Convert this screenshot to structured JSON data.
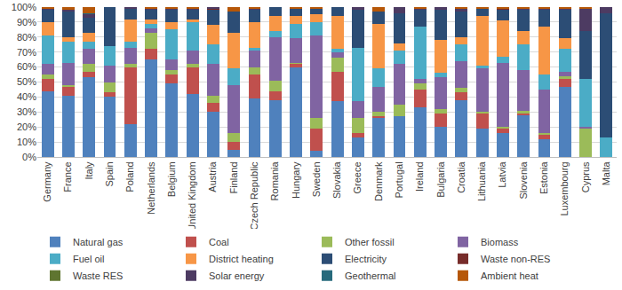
{
  "chart_data": {
    "type": "bar",
    "stacked": true,
    "grid": true,
    "legend": "bottom",
    "categories": [
      "Germany",
      "France",
      "Italy",
      "Spain",
      "Poland",
      "Netherlands",
      "Belgium",
      "United Kingdom",
      "Austria",
      "Finland",
      "Czech Republic",
      "Romania",
      "Hungary",
      "Sweden",
      "Slovakia",
      "Greece",
      "Denmark",
      "Portugal",
      "Ireland",
      "Bulgaria",
      "Croatia",
      "Lithuania",
      "Latvia",
      "Slovenia",
      "Estonia",
      "Luxembourg",
      "Cyprus",
      "Malta"
    ],
    "ylim": [
      0,
      100
    ],
    "yticks": [
      {
        "value": 0,
        "label": "0%"
      },
      {
        "value": 10,
        "label": "10%"
      },
      {
        "value": 20,
        "label": "20%"
      },
      {
        "value": 30,
        "label": "30%"
      },
      {
        "value": 40,
        "label": "40%"
      },
      {
        "value": 50,
        "label": "50%"
      },
      {
        "value": 60,
        "label": "60%"
      },
      {
        "value": 70,
        "label": "70%"
      },
      {
        "value": 80,
        "label": "80%"
      },
      {
        "value": 90,
        "label": "90%"
      },
      {
        "value": 100,
        "label": "100%"
      }
    ],
    "series": [
      {
        "name": "Natural gas",
        "color": "#4f81bd",
        "values": [
          44,
          41,
          53,
          40,
          22,
          65,
          49,
          42,
          30,
          5,
          39,
          38,
          60,
          4,
          37,
          13,
          26,
          27,
          33,
          20,
          38,
          19,
          16,
          28,
          12,
          47,
          0,
          0
        ]
      },
      {
        "name": "Coal",
        "color": "#c0504d",
        "values": [
          8,
          6,
          4,
          3,
          38,
          7,
          6,
          18,
          6,
          5,
          16,
          6,
          2,
          15,
          20,
          3,
          1,
          0,
          12,
          9,
          5,
          10,
          3,
          1,
          3,
          5,
          0,
          0
        ]
      },
      {
        "name": "Other fossil",
        "color": "#9bbb59",
        "values": [
          3,
          1,
          5,
          7,
          2,
          11,
          3,
          2,
          5,
          6,
          5,
          7,
          1,
          7,
          9,
          10,
          3,
          8,
          4,
          3,
          3,
          1,
          1,
          2,
          1,
          2,
          19,
          0
        ]
      },
      {
        "name": "Biomass",
        "color": "#8064a2",
        "values": [
          7,
          15,
          10,
          11,
          11,
          3,
          7,
          9,
          21,
          32,
          11,
          29,
          16,
          55,
          4,
          11,
          17,
          27,
          3,
          21,
          18,
          29,
          43,
          27,
          29,
          3,
          1,
          0
        ]
      },
      {
        "name": "Fuel oil",
        "color": "#4bacc6",
        "values": [
          19,
          14,
          5,
          13,
          4,
          3,
          20,
          19,
          13,
          11,
          2,
          4,
          10,
          9,
          2,
          36,
          12,
          9,
          35,
          3,
          11,
          2,
          4,
          17,
          10,
          15,
          32,
          13
        ]
      },
      {
        "name": "District heating",
        "color": "#f79646",
        "values": [
          9,
          3,
          6,
          0,
          15,
          3,
          5,
          2,
          13,
          24,
          17,
          10,
          5,
          5,
          22,
          0,
          30,
          5,
          0,
          22,
          5,
          33,
          24,
          9,
          32,
          7,
          0,
          0
        ]
      },
      {
        "name": "Electricity",
        "color": "#2c4d75",
        "values": [
          8,
          17,
          10,
          26,
          7,
          6,
          8,
          6,
          10,
          14,
          8,
          6,
          5,
          4,
          6,
          25,
          8,
          20,
          11,
          20,
          17,
          5,
          7,
          14,
          11,
          19,
          32,
          83
        ]
      },
      {
        "name": "Waste non-RES",
        "color": "#772c2a",
        "values": [
          0,
          0,
          0,
          0,
          0,
          0,
          0,
          0,
          1,
          0,
          0,
          0,
          0,
          0,
          0,
          0,
          0,
          0,
          0,
          0,
          0,
          0,
          1,
          0,
          0,
          0,
          0,
          0
        ]
      },
      {
        "name": "Waste RES",
        "color": "#5f7530",
        "values": [
          0,
          0,
          0,
          0,
          0,
          0,
          0,
          0,
          0,
          0,
          0,
          0,
          0,
          0,
          0,
          0,
          0,
          0,
          0,
          0,
          0,
          0,
          0,
          0,
          0,
          0,
          0,
          0
        ]
      },
      {
        "name": "Solar energy",
        "color": "#4d3b62",
        "values": [
          1,
          1,
          2,
          0,
          1,
          1,
          1,
          1,
          1,
          0,
          1,
          0,
          0,
          0,
          0,
          2,
          0,
          4,
          1,
          2,
          2,
          0,
          0,
          1,
          1,
          1,
          15,
          4
        ]
      },
      {
        "name": "Geothermal",
        "color": "#276a7c",
        "values": [
          0,
          0,
          1,
          0,
          0,
          0,
          0,
          0,
          0,
          0,
          0,
          0,
          0,
          0,
          0,
          0,
          0,
          0,
          0,
          0,
          0,
          0,
          0,
          0,
          0,
          0,
          0,
          0
        ]
      },
      {
        "name": "Ambient heat",
        "color": "#b65708",
        "values": [
          1,
          2,
          4,
          0,
          0,
          1,
          1,
          1,
          0,
          3,
          1,
          0,
          1,
          1,
          0,
          0,
          3,
          0,
          1,
          0,
          1,
          1,
          1,
          1,
          1,
          1,
          1,
          0
        ]
      }
    ]
  }
}
